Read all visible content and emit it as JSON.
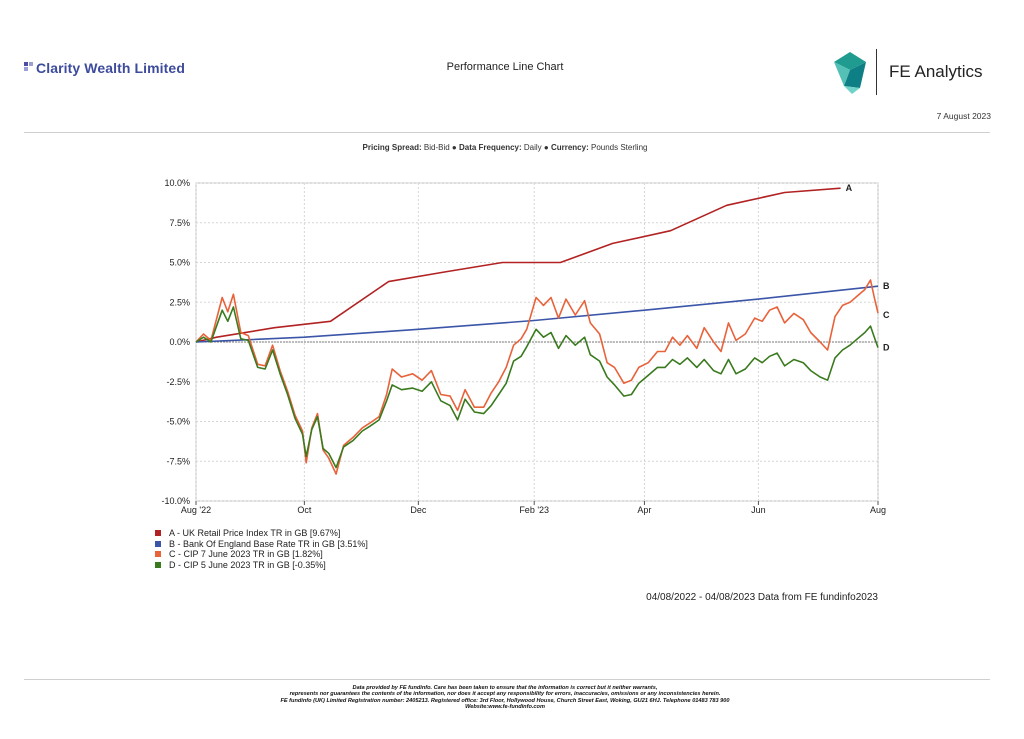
{
  "header": {
    "brand_name": "Clarity Wealth Limited",
    "report_title": "Performance Line Chart",
    "provider_name": "FE Analytics",
    "report_date": "7 August 2023"
  },
  "subtitle": {
    "pricing_label": "Pricing Spread:",
    "pricing_value": "Bid-Bid",
    "sep1": " ● ",
    "frequency_label": "Data Frequency:",
    "frequency_value": "Daily",
    "sep2": " ● ",
    "currency_label": "Currency:",
    "currency_value": "Pounds Sterling"
  },
  "data_range_text": "04/08/2022 - 04/08/2023 Data from FE fundinfo2023",
  "footer_lines": [
    "Data provided by FE fundinfo. Care has been taken to ensure that the information is correct but it neither warrants,",
    "represents nor guarantees the contents of the information, nor does it accept any responsibility for errors, inaccuracies, omissions or any inconsistencies herein.",
    "FE fundinfo (UK) Limited Registration number: 2405213. Registered office: 3rd Floor, Hollywood House, Church Street East, Woking, GU21 6HJ. Telephone 01483 783 900",
    "Website:www.fe-fundinfo.com"
  ],
  "chart_data": {
    "type": "line",
    "x_range": [
      "2022-08-04",
      "2023-08-04"
    ],
    "ylim": [
      -10,
      10
    ],
    "y_ticks": [
      -10,
      -7.5,
      -5,
      -2.5,
      0,
      2.5,
      5,
      7.5,
      10
    ],
    "y_tick_labels": [
      "-10.0%",
      "-7.5%",
      "-5.0%",
      "-2.5%",
      "0.0%",
      "2.5%",
      "5.0%",
      "7.5%",
      "10.0%"
    ],
    "x_ticks": [
      {
        "date": "2022-08-04",
        "label": "Aug '22"
      },
      {
        "date": "2022-10-01",
        "label": "Oct"
      },
      {
        "date": "2022-12-01",
        "label": "Dec"
      },
      {
        "date": "2023-02-01",
        "label": "Feb '23"
      },
      {
        "date": "2023-04-01",
        "label": "Apr"
      },
      {
        "date": "2023-06-01",
        "label": "Jun"
      },
      {
        "date": "2023-08-04",
        "label": "Aug"
      }
    ],
    "grid": true,
    "series": [
      {
        "name": "A - UK Retail Price Index TR in GB [9.67%]",
        "end_label": "A",
        "color": "#b22222",
        "points": [
          [
            "2022-08-04",
            0.0
          ],
          [
            "2022-08-15",
            0.3
          ],
          [
            "2022-09-15",
            0.9
          ],
          [
            "2022-10-15",
            1.3
          ],
          [
            "2022-11-15",
            3.8
          ],
          [
            "2022-12-15",
            4.4
          ],
          [
            "2023-01-15",
            5.0
          ],
          [
            "2023-02-15",
            5.0
          ],
          [
            "2023-03-15",
            6.2
          ],
          [
            "2023-04-15",
            7.0
          ],
          [
            "2023-05-15",
            8.6
          ],
          [
            "2023-06-15",
            9.4
          ],
          [
            "2023-07-15",
            9.67
          ]
        ]
      },
      {
        "name": "B - Bank Of England Base Rate TR in GB [3.51%]",
        "end_label": "B",
        "color": "#3b55a8",
        "points": [
          [
            "2022-08-04",
            0.0
          ],
          [
            "2022-10-01",
            0.3
          ],
          [
            "2022-12-01",
            0.8
          ],
          [
            "2023-02-01",
            1.35
          ],
          [
            "2023-04-01",
            2.0
          ],
          [
            "2023-06-01",
            2.7
          ],
          [
            "2023-08-04",
            3.51
          ]
        ]
      },
      {
        "name": "C - CIP 7 June 2023 TR in GB [1.82%]",
        "end_label": "C",
        "color": "#e8623a",
        "points": [
          [
            "2022-08-04",
            0.0
          ],
          [
            "2022-08-08",
            0.5
          ],
          [
            "2022-08-12",
            0.1
          ],
          [
            "2022-08-18",
            2.8
          ],
          [
            "2022-08-21",
            1.9
          ],
          [
            "2022-08-24",
            3.0
          ],
          [
            "2022-08-28",
            0.6
          ],
          [
            "2022-09-01",
            0.4
          ],
          [
            "2022-09-06",
            -1.4
          ],
          [
            "2022-09-10",
            -1.5
          ],
          [
            "2022-09-14",
            -0.2
          ],
          [
            "2022-09-18",
            -1.8
          ],
          [
            "2022-09-22",
            -3.1
          ],
          [
            "2022-09-26",
            -4.6
          ],
          [
            "2022-09-30",
            -5.6
          ],
          [
            "2022-10-02",
            -7.6
          ],
          [
            "2022-10-05",
            -5.4
          ],
          [
            "2022-10-08",
            -4.5
          ],
          [
            "2022-10-11",
            -6.8
          ],
          [
            "2022-10-14",
            -7.3
          ],
          [
            "2022-10-18",
            -8.3
          ],
          [
            "2022-10-22",
            -6.5
          ],
          [
            "2022-10-27",
            -6.0
          ],
          [
            "2022-11-01",
            -5.4
          ],
          [
            "2022-11-05",
            -5.1
          ],
          [
            "2022-11-10",
            -4.7
          ],
          [
            "2022-11-14",
            -3.3
          ],
          [
            "2022-11-17",
            -1.7
          ],
          [
            "2022-11-22",
            -2.2
          ],
          [
            "2022-11-28",
            -2.0
          ],
          [
            "2022-12-03",
            -2.4
          ],
          [
            "2022-12-08",
            -1.8
          ],
          [
            "2022-12-13",
            -3.3
          ],
          [
            "2022-12-18",
            -3.4
          ],
          [
            "2022-12-22",
            -4.3
          ],
          [
            "2022-12-26",
            -3.0
          ],
          [
            "2022-12-31",
            -4.1
          ],
          [
            "2023-01-05",
            -4.1
          ],
          [
            "2023-01-09",
            -3.2
          ],
          [
            "2023-01-13",
            -2.5
          ],
          [
            "2023-01-17",
            -1.6
          ],
          [
            "2023-01-21",
            -0.2
          ],
          [
            "2023-01-25",
            0.2
          ],
          [
            "2023-01-28",
            0.8
          ],
          [
            "2023-02-02",
            2.8
          ],
          [
            "2023-02-06",
            2.3
          ],
          [
            "2023-02-10",
            2.8
          ],
          [
            "2023-02-14",
            1.5
          ],
          [
            "2023-02-18",
            2.7
          ],
          [
            "2023-02-23",
            1.7
          ],
          [
            "2023-02-28",
            2.6
          ],
          [
            "2023-03-03",
            1.2
          ],
          [
            "2023-03-08",
            0.5
          ],
          [
            "2023-03-12",
            -1.3
          ],
          [
            "2023-03-16",
            -1.6
          ],
          [
            "2023-03-21",
            -2.6
          ],
          [
            "2023-03-25",
            -2.4
          ],
          [
            "2023-03-29",
            -1.6
          ],
          [
            "2023-04-03",
            -1.3
          ],
          [
            "2023-04-08",
            -0.6
          ],
          [
            "2023-04-12",
            -0.6
          ],
          [
            "2023-04-16",
            0.3
          ],
          [
            "2023-04-20",
            -0.2
          ],
          [
            "2023-04-24",
            0.4
          ],
          [
            "2023-04-29",
            -0.4
          ],
          [
            "2023-05-03",
            0.9
          ],
          [
            "2023-05-08",
            0.0
          ],
          [
            "2023-05-12",
            -0.6
          ],
          [
            "2023-05-16",
            1.2
          ],
          [
            "2023-05-20",
            0.1
          ],
          [
            "2023-05-25",
            0.5
          ],
          [
            "2023-05-30",
            1.5
          ],
          [
            "2023-06-03",
            1.3
          ],
          [
            "2023-06-07",
            2.0
          ],
          [
            "2023-06-11",
            2.2
          ],
          [
            "2023-06-15",
            1.2
          ],
          [
            "2023-06-20",
            1.8
          ],
          [
            "2023-06-25",
            1.4
          ],
          [
            "2023-06-29",
            0.6
          ],
          [
            "2023-07-04",
            0.0
          ],
          [
            "2023-07-08",
            -0.5
          ],
          [
            "2023-07-12",
            1.6
          ],
          [
            "2023-07-16",
            2.3
          ],
          [
            "2023-07-20",
            2.5
          ],
          [
            "2023-07-24",
            2.9
          ],
          [
            "2023-07-28",
            3.3
          ],
          [
            "2023-07-31",
            3.9
          ],
          [
            "2023-08-02",
            2.8
          ],
          [
            "2023-08-04",
            1.82
          ]
        ]
      },
      {
        "name": "D - CIP 5 June 2023 TR in GB [-0.35%]",
        "end_label": "D",
        "color": "#3a7a1e",
        "points": [
          [
            "2022-08-04",
            0.0
          ],
          [
            "2022-08-08",
            0.3
          ],
          [
            "2022-08-12",
            0.0
          ],
          [
            "2022-08-18",
            2.0
          ],
          [
            "2022-08-21",
            1.3
          ],
          [
            "2022-08-24",
            2.2
          ],
          [
            "2022-08-28",
            0.2
          ],
          [
            "2022-09-01",
            0.1
          ],
          [
            "2022-09-06",
            -1.6
          ],
          [
            "2022-09-10",
            -1.7
          ],
          [
            "2022-09-14",
            -0.5
          ],
          [
            "2022-09-18",
            -2.0
          ],
          [
            "2022-09-22",
            -3.3
          ],
          [
            "2022-09-26",
            -4.8
          ],
          [
            "2022-09-30",
            -5.8
          ],
          [
            "2022-10-02",
            -7.2
          ],
          [
            "2022-10-05",
            -5.5
          ],
          [
            "2022-10-08",
            -4.7
          ],
          [
            "2022-10-11",
            -6.7
          ],
          [
            "2022-10-14",
            -7.0
          ],
          [
            "2022-10-18",
            -7.9
          ],
          [
            "2022-10-22",
            -6.6
          ],
          [
            "2022-10-27",
            -6.2
          ],
          [
            "2022-11-01",
            -5.6
          ],
          [
            "2022-11-05",
            -5.3
          ],
          [
            "2022-11-10",
            -4.9
          ],
          [
            "2022-11-14",
            -3.7
          ],
          [
            "2022-11-17",
            -2.7
          ],
          [
            "2022-11-22",
            -3.0
          ],
          [
            "2022-11-28",
            -2.9
          ],
          [
            "2022-12-03",
            -3.1
          ],
          [
            "2022-12-08",
            -2.5
          ],
          [
            "2022-12-13",
            -3.7
          ],
          [
            "2022-12-18",
            -4.0
          ],
          [
            "2022-12-22",
            -4.9
          ],
          [
            "2022-12-26",
            -3.6
          ],
          [
            "2022-12-31",
            -4.4
          ],
          [
            "2023-01-05",
            -4.5
          ],
          [
            "2023-01-09",
            -4.0
          ],
          [
            "2023-01-13",
            -3.3
          ],
          [
            "2023-01-17",
            -2.6
          ],
          [
            "2023-01-21",
            -1.2
          ],
          [
            "2023-01-25",
            -0.9
          ],
          [
            "2023-01-28",
            -0.3
          ],
          [
            "2023-02-02",
            0.8
          ],
          [
            "2023-02-06",
            0.3
          ],
          [
            "2023-02-10",
            0.6
          ],
          [
            "2023-02-14",
            -0.4
          ],
          [
            "2023-02-18",
            0.4
          ],
          [
            "2023-02-23",
            -0.2
          ],
          [
            "2023-02-28",
            0.3
          ],
          [
            "2023-03-03",
            -0.8
          ],
          [
            "2023-03-08",
            -1.2
          ],
          [
            "2023-03-12",
            -2.2
          ],
          [
            "2023-03-16",
            -2.7
          ],
          [
            "2023-03-21",
            -3.4
          ],
          [
            "2023-03-25",
            -3.3
          ],
          [
            "2023-03-29",
            -2.6
          ],
          [
            "2023-04-03",
            -2.1
          ],
          [
            "2023-04-08",
            -1.6
          ],
          [
            "2023-04-12",
            -1.6
          ],
          [
            "2023-04-16",
            -1.1
          ],
          [
            "2023-04-20",
            -1.4
          ],
          [
            "2023-04-24",
            -1.0
          ],
          [
            "2023-04-29",
            -1.6
          ],
          [
            "2023-05-03",
            -1.1
          ],
          [
            "2023-05-08",
            -1.8
          ],
          [
            "2023-05-12",
            -2.0
          ],
          [
            "2023-05-16",
            -1.1
          ],
          [
            "2023-05-20",
            -2.0
          ],
          [
            "2023-05-25",
            -1.7
          ],
          [
            "2023-05-30",
            -1.0
          ],
          [
            "2023-06-03",
            -1.3
          ],
          [
            "2023-06-07",
            -0.9
          ],
          [
            "2023-06-11",
            -0.7
          ],
          [
            "2023-06-15",
            -1.5
          ],
          [
            "2023-06-20",
            -1.1
          ],
          [
            "2023-06-25",
            -1.3
          ],
          [
            "2023-06-29",
            -1.8
          ],
          [
            "2023-07-04",
            -2.2
          ],
          [
            "2023-07-08",
            -2.4
          ],
          [
            "2023-07-12",
            -1.0
          ],
          [
            "2023-07-16",
            -0.5
          ],
          [
            "2023-07-20",
            -0.2
          ],
          [
            "2023-07-24",
            0.2
          ],
          [
            "2023-07-28",
            0.6
          ],
          [
            "2023-07-31",
            1.0
          ],
          [
            "2023-08-02",
            0.3
          ],
          [
            "2023-08-04",
            -0.35
          ]
        ]
      }
    ]
  }
}
